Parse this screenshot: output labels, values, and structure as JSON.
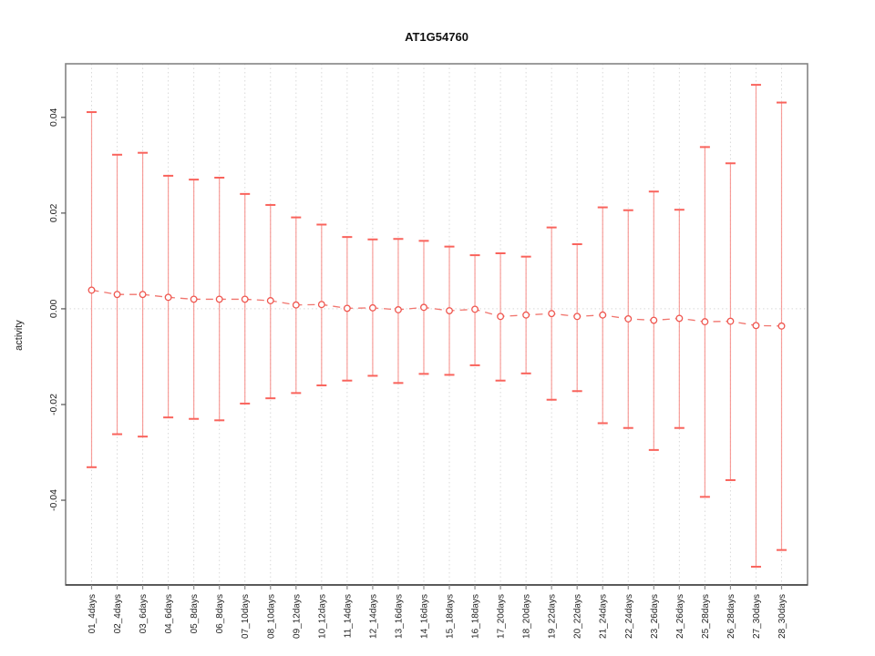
{
  "chart_data": {
    "type": "line",
    "title": "AT1G54760",
    "xlabel": "",
    "ylabel": "activity",
    "ylim": [
      -0.0577,
      0.0512
    ],
    "yticks": [
      0.04,
      0.02,
      0.0,
      -0.02,
      -0.04
    ],
    "ytick_labels": [
      "0.04",
      "0.02",
      "0.00",
      "-0.02",
      "-0.04"
    ],
    "grid": "dotted vertical line per category, dotted horizontal line at zero",
    "legend": null,
    "error_bars": true,
    "marker": "open-circle",
    "line_style": "dashed",
    "categories": [
      "01_4days",
      "02_4days",
      "03_6days",
      "04_6days",
      "05_8days",
      "06_8days",
      "07_10days",
      "08_10days",
      "09_12days",
      "10_12days",
      "11_14days",
      "12_14days",
      "13_16days",
      "14_16days",
      "15_18days",
      "16_18days",
      "17_20days",
      "18_20days",
      "19_22days",
      "20_22days",
      "21_24days",
      "22_24days",
      "23_26days",
      "24_26days",
      "25_28days",
      "26_28days",
      "27_30days",
      "28_30days"
    ],
    "series": [
      {
        "name": "activity",
        "values": [
          0.0039,
          0.003,
          0.003,
          0.0024,
          0.002,
          0.002,
          0.002,
          0.0017,
          0.0008,
          0.0009,
          0.0001,
          0.0002,
          -0.0002,
          0.0003,
          -0.0004,
          -0.0001,
          -0.0016,
          -0.0013,
          -0.001,
          -0.0016,
          -0.0013,
          -0.0021,
          -0.0024,
          -0.002,
          -0.0027,
          -0.0026,
          -0.0035,
          -0.0036
        ],
        "upper": [
          0.0411,
          0.0322,
          0.0326,
          0.0278,
          0.027,
          0.0274,
          0.024,
          0.0217,
          0.0191,
          0.0176,
          0.015,
          0.0145,
          0.0146,
          0.0142,
          0.013,
          0.0112,
          0.0116,
          0.0109,
          0.017,
          0.0135,
          0.0212,
          0.0206,
          0.0245,
          0.0207,
          0.0338,
          0.0304,
          0.0468,
          0.0431
        ],
        "lower": [
          -0.0331,
          -0.0262,
          -0.0267,
          -0.0227,
          -0.023,
          -0.0233,
          -0.0198,
          -0.0187,
          -0.0176,
          -0.016,
          -0.015,
          -0.014,
          -0.0155,
          -0.0136,
          -0.0138,
          -0.0118,
          -0.015,
          -0.0135,
          -0.019,
          -0.0172,
          -0.0239,
          -0.0249,
          -0.0295,
          -0.0249,
          -0.0393,
          -0.0358,
          -0.0539,
          -0.0504
        ]
      }
    ]
  },
  "colors": {
    "error_bar_stem": "#f78f8a",
    "error_bar_cap": "#f9635c",
    "series_line": "#f1756e",
    "marker_stroke": "#ef5750",
    "marker_fill": "#ffffff",
    "grid": "#d9d9d9",
    "axis_box": "#848484",
    "axis_bottom": "#3c3c3c",
    "tick": "#8f8f8f",
    "text": "#1f1f1f"
  }
}
